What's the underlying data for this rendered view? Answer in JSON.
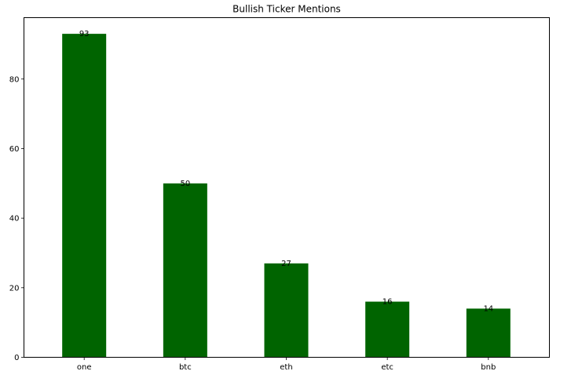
{
  "chart_data": {
    "type": "bar",
    "title": "Bullish Ticker Mentions",
    "xlabel": "",
    "ylabel": "",
    "categories": [
      "one",
      "btc",
      "eth",
      "etc",
      "bnb"
    ],
    "values": [
      93,
      50,
      27,
      16,
      14
    ],
    "ylim": [
      0,
      97.65
    ],
    "yticks": [
      0,
      20,
      40,
      60,
      80
    ],
    "bar_color": "#006400",
    "data_labels": true,
    "grid": false,
    "legend": "none"
  }
}
